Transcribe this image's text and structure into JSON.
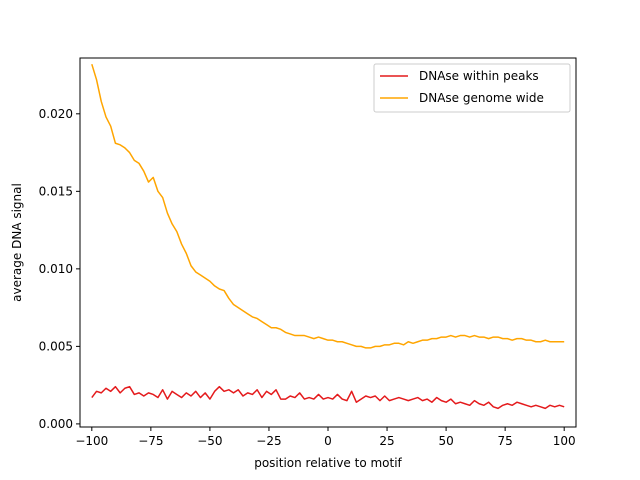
{
  "chart_data": {
    "type": "line",
    "xlabel": "position relative to motif",
    "ylabel": "average DNA signal",
    "xlim": [
      -105,
      105
    ],
    "ylim": [
      -0.0002,
      0.0236
    ],
    "xticks": [
      -100,
      -75,
      -50,
      -25,
      0,
      25,
      50,
      75,
      100
    ],
    "xtick_labels": [
      "−100",
      "−75",
      "−50",
      "−25",
      "0",
      "25",
      "50",
      "75",
      "100"
    ],
    "yticks": [
      0.0,
      0.005,
      0.01,
      0.015,
      0.02
    ],
    "ytick_labels": [
      "0.000",
      "0.005",
      "0.010",
      "0.015",
      "0.020"
    ],
    "grid": false,
    "legend_position": "top-right",
    "series": [
      {
        "name": "DNAse within peaks",
        "color": "#e41a1c",
        "x": [
          -100,
          -98,
          -96,
          -94,
          -92,
          -90,
          -88,
          -86,
          -84,
          -82,
          -80,
          -78,
          -76,
          -74,
          -72,
          -70,
          -68,
          -66,
          -64,
          -62,
          -60,
          -58,
          -56,
          -54,
          -52,
          -50,
          -48,
          -46,
          -44,
          -42,
          -40,
          -38,
          -36,
          -34,
          -32,
          -30,
          -28,
          -26,
          -24,
          -22,
          -20,
          -18,
          -16,
          -14,
          -12,
          -10,
          -8,
          -6,
          -4,
          -2,
          0,
          2,
          4,
          6,
          8,
          10,
          12,
          14,
          16,
          18,
          20,
          22,
          24,
          26,
          28,
          30,
          32,
          34,
          36,
          38,
          40,
          42,
          44,
          46,
          48,
          50,
          52,
          54,
          56,
          58,
          60,
          62,
          64,
          66,
          68,
          70,
          72,
          74,
          76,
          78,
          80,
          82,
          84,
          86,
          88,
          90,
          92,
          94,
          96,
          98,
          100
        ],
        "values": [
          0.0017,
          0.0021,
          0.002,
          0.0023,
          0.0021,
          0.0024,
          0.002,
          0.0023,
          0.0024,
          0.0019,
          0.002,
          0.0018,
          0.002,
          0.0019,
          0.0017,
          0.0022,
          0.0016,
          0.0021,
          0.0019,
          0.0017,
          0.002,
          0.0018,
          0.0021,
          0.0017,
          0.002,
          0.0016,
          0.0021,
          0.0024,
          0.0021,
          0.0022,
          0.002,
          0.0022,
          0.0018,
          0.002,
          0.0019,
          0.0022,
          0.0017,
          0.0021,
          0.0019,
          0.0022,
          0.0016,
          0.0016,
          0.0018,
          0.0017,
          0.002,
          0.0016,
          0.0017,
          0.0016,
          0.0019,
          0.0016,
          0.0017,
          0.0016,
          0.0019,
          0.0016,
          0.0015,
          0.0021,
          0.0014,
          0.0016,
          0.0018,
          0.0017,
          0.0018,
          0.0015,
          0.0018,
          0.0015,
          0.0016,
          0.0017,
          0.0016,
          0.0015,
          0.0016,
          0.0017,
          0.0015,
          0.0016,
          0.0014,
          0.0017,
          0.0015,
          0.0014,
          0.0016,
          0.0013,
          0.0014,
          0.0013,
          0.0012,
          0.0015,
          0.0013,
          0.0012,
          0.0014,
          0.0011,
          0.001,
          0.0012,
          0.0013,
          0.0012,
          0.0014,
          0.0013,
          0.0012,
          0.0011,
          0.0012,
          0.0011,
          0.001,
          0.0012,
          0.0011,
          0.0012,
          0.0011
        ]
      },
      {
        "name": "DNAse genome wide",
        "color": "#ffa500",
        "x": [
          -100,
          -98,
          -96,
          -94,
          -92,
          -90,
          -88,
          -86,
          -84,
          -82,
          -80,
          -78,
          -76,
          -74,
          -72,
          -70,
          -68,
          -66,
          -64,
          -62,
          -60,
          -58,
          -56,
          -54,
          -52,
          -50,
          -48,
          -46,
          -44,
          -42,
          -40,
          -38,
          -36,
          -34,
          -32,
          -30,
          -28,
          -26,
          -24,
          -22,
          -20,
          -18,
          -16,
          -14,
          -12,
          -10,
          -8,
          -6,
          -4,
          -2,
          0,
          2,
          4,
          6,
          8,
          10,
          12,
          14,
          16,
          18,
          20,
          22,
          24,
          26,
          28,
          30,
          32,
          34,
          36,
          38,
          40,
          42,
          44,
          46,
          48,
          50,
          52,
          54,
          56,
          58,
          60,
          62,
          64,
          66,
          68,
          70,
          72,
          74,
          76,
          78,
          80,
          82,
          84,
          86,
          88,
          90,
          92,
          94,
          96,
          98,
          100
        ],
        "values": [
          0.0232,
          0.0222,
          0.0208,
          0.0198,
          0.0192,
          0.0181,
          0.018,
          0.0178,
          0.0175,
          0.017,
          0.0168,
          0.0163,
          0.0156,
          0.0159,
          0.015,
          0.0146,
          0.0136,
          0.0129,
          0.0124,
          0.0116,
          0.011,
          0.0102,
          0.0098,
          0.0096,
          0.0094,
          0.0092,
          0.0089,
          0.0087,
          0.0086,
          0.0081,
          0.0077,
          0.0075,
          0.0073,
          0.0071,
          0.0069,
          0.0068,
          0.0066,
          0.0064,
          0.0062,
          0.0062,
          0.0061,
          0.0059,
          0.0058,
          0.0057,
          0.0057,
          0.0057,
          0.0056,
          0.0055,
          0.0056,
          0.0055,
          0.0054,
          0.0054,
          0.0053,
          0.0053,
          0.0052,
          0.0051,
          0.005,
          0.005,
          0.0049,
          0.0049,
          0.005,
          0.005,
          0.0051,
          0.0051,
          0.0052,
          0.0052,
          0.0051,
          0.0053,
          0.0052,
          0.0053,
          0.0054,
          0.0054,
          0.0055,
          0.0055,
          0.0056,
          0.0056,
          0.0057,
          0.0056,
          0.0057,
          0.0057,
          0.0056,
          0.0057,
          0.0056,
          0.0056,
          0.0055,
          0.0056,
          0.0056,
          0.0055,
          0.0055,
          0.0054,
          0.0055,
          0.0055,
          0.0054,
          0.0054,
          0.0053,
          0.0053,
          0.0054,
          0.0053,
          0.0053,
          0.0053,
          0.0053
        ]
      }
    ]
  }
}
